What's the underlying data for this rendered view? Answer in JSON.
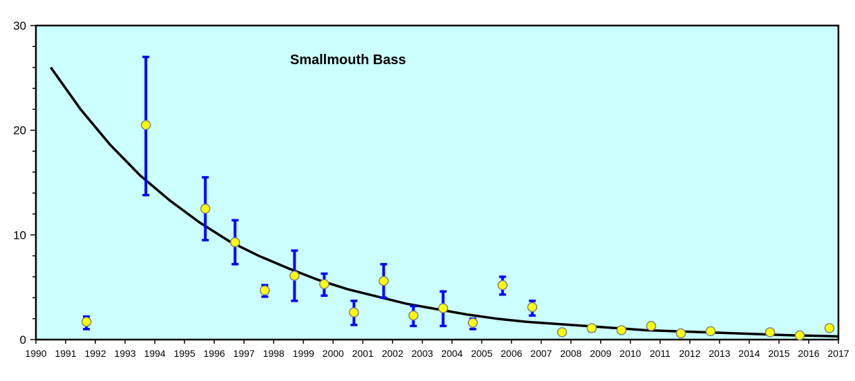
{
  "chart_data": {
    "type": "scatter",
    "title": "Smallmouth Bass",
    "xlabel": "",
    "ylabel": "",
    "xlim": [
      1990,
      2017
    ],
    "ylim": [
      0,
      30
    ],
    "x_ticks": [
      "1990",
      "1991",
      "1992",
      "1993",
      "1994",
      "1995",
      "1996",
      "1997",
      "1998",
      "1999",
      "2000",
      "2001",
      "2002",
      "2003",
      "2004",
      "2005",
      "2006",
      "2007",
      "2008",
      "2009",
      "2010",
      "2011",
      "2012",
      "2013",
      "2014",
      "2015",
      "2016",
      "2017"
    ],
    "y_ticks": [
      "0",
      "10",
      "20",
      "30"
    ],
    "grid": false,
    "colors": {
      "plot_background": "#ccffff",
      "point_fill": "#ffff00",
      "point_stroke": "#808080",
      "error_bar": "#0000ff",
      "trend_line": "#000000"
    },
    "points": [
      {
        "x": 1991.7,
        "y": 1.7,
        "low": 1.0,
        "high": 2.2
      },
      {
        "x": 1993.7,
        "y": 20.5,
        "low": 13.8,
        "high": 27.0
      },
      {
        "x": 1995.7,
        "y": 12.5,
        "low": 9.5,
        "high": 15.5
      },
      {
        "x": 1996.7,
        "y": 9.3,
        "low": 7.2,
        "high": 11.4
      },
      {
        "x": 1997.7,
        "y": 4.7,
        "low": 4.1,
        "high": 5.2
      },
      {
        "x": 1998.7,
        "y": 6.1,
        "low": 3.7,
        "high": 8.5
      },
      {
        "x": 1999.7,
        "y": 5.3,
        "low": 4.2,
        "high": 6.3
      },
      {
        "x": 2000.7,
        "y": 2.6,
        "low": 1.4,
        "high": 3.7
      },
      {
        "x": 2001.7,
        "y": 5.6,
        "low": 4.0,
        "high": 7.2
      },
      {
        "x": 2002.7,
        "y": 2.3,
        "low": 1.3,
        "high": 3.2
      },
      {
        "x": 2003.7,
        "y": 3.0,
        "low": 1.3,
        "high": 4.6
      },
      {
        "x": 2004.7,
        "y": 1.6,
        "low": 1.0,
        "high": 2.0
      },
      {
        "x": 2005.7,
        "y": 5.2,
        "low": 4.3,
        "high": 6.0
      },
      {
        "x": 2006.7,
        "y": 3.1,
        "low": 2.3,
        "high": 3.7
      },
      {
        "x": 2007.7,
        "y": 0.7,
        "low": 0.5,
        "high": 0.8
      },
      {
        "x": 2008.7,
        "y": 1.1,
        "low": 0.8,
        "high": 1.3
      },
      {
        "x": 2009.7,
        "y": 0.9,
        "low": 0.8,
        "high": 1.0
      },
      {
        "x": 2010.7,
        "y": 1.3,
        "low": 1.1,
        "high": 1.4
      },
      {
        "x": 2011.7,
        "y": 0.6,
        "low": 0.5,
        "high": 0.7
      },
      {
        "x": 2012.7,
        "y": 0.8,
        "low": 0.7,
        "high": 0.9
      },
      {
        "x": 2014.7,
        "y": 0.7,
        "low": 0.6,
        "high": 0.8
      },
      {
        "x": 2015.7,
        "y": 0.4,
        "low": 0.3,
        "high": 0.5
      },
      {
        "x": 2016.7,
        "y": 1.1,
        "low": 1.0,
        "high": 1.2
      }
    ],
    "trend_line": [
      {
        "x": 1990.5,
        "y": 26.0
      },
      {
        "x": 1991.5,
        "y": 22.0
      },
      {
        "x": 1992.5,
        "y": 18.6
      },
      {
        "x": 1993.5,
        "y": 15.7
      },
      {
        "x": 1994.5,
        "y": 13.3
      },
      {
        "x": 1995.5,
        "y": 11.2
      },
      {
        "x": 1996.5,
        "y": 9.4
      },
      {
        "x": 1997.5,
        "y": 8.0
      },
      {
        "x": 1998.5,
        "y": 6.8
      },
      {
        "x": 1999.5,
        "y": 5.7
      },
      {
        "x": 2000.5,
        "y": 4.8
      },
      {
        "x": 2001.5,
        "y": 4.1
      },
      {
        "x": 2002.5,
        "y": 3.4
      },
      {
        "x": 2003.5,
        "y": 2.9
      },
      {
        "x": 2004.5,
        "y": 2.4
      },
      {
        "x": 2005.5,
        "y": 2.0
      },
      {
        "x": 2006.5,
        "y": 1.7
      },
      {
        "x": 2007.5,
        "y": 1.5
      },
      {
        "x": 2008.5,
        "y": 1.3
      },
      {
        "x": 2009.5,
        "y": 1.1
      },
      {
        "x": 2010.5,
        "y": 0.9
      },
      {
        "x": 2011.5,
        "y": 0.8
      },
      {
        "x": 2012.5,
        "y": 0.7
      },
      {
        "x": 2013.5,
        "y": 0.6
      },
      {
        "x": 2014.5,
        "y": 0.5
      },
      {
        "x": 2015.5,
        "y": 0.4
      },
      {
        "x": 2016.5,
        "y": 0.35
      },
      {
        "x": 2017.0,
        "y": 0.3
      }
    ]
  }
}
